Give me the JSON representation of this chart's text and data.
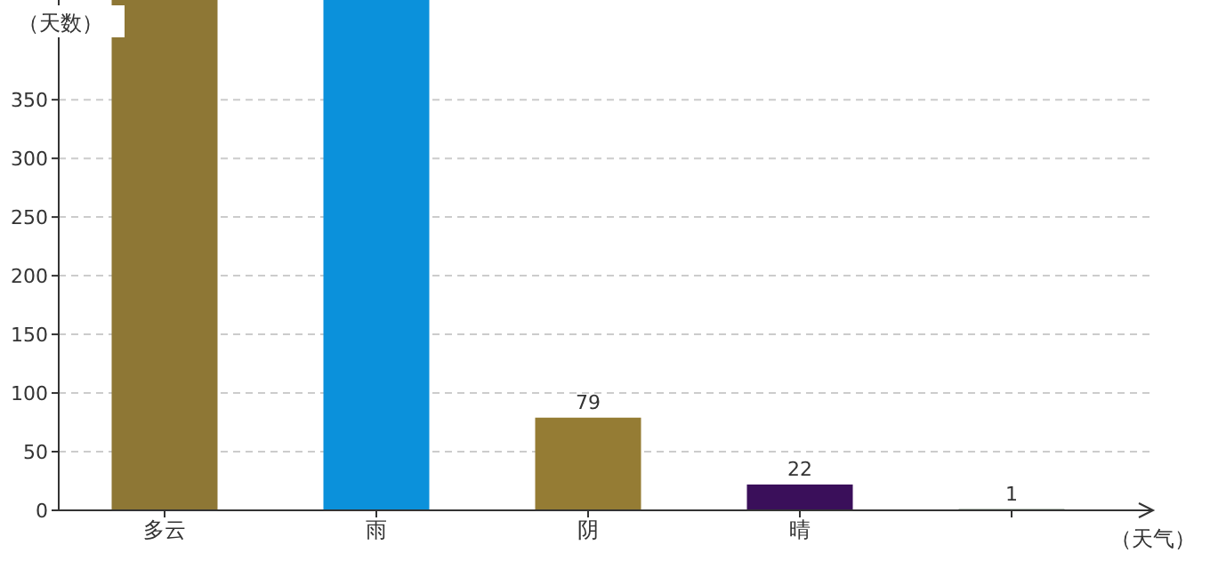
{
  "chart_data": {
    "type": "bar",
    "xlabel": "（天气）",
    "ylabel": "（天数）",
    "categories": [
      "多云",
      "雨",
      "阴",
      "晴",
      null
    ],
    "values": [
      435,
      435,
      79,
      22,
      1
    ],
    "colors": [
      "#8e7735",
      "#0b91db",
      "#957c34",
      "#3a0f5a",
      "#2f4f2f"
    ],
    "value_labels": [
      null,
      null,
      "79",
      "22",
      "1"
    ],
    "ylim": [
      0,
      435
    ],
    "yticks": [
      0,
      50,
      100,
      150,
      200,
      250,
      300,
      350
    ],
    "grid": "y"
  }
}
